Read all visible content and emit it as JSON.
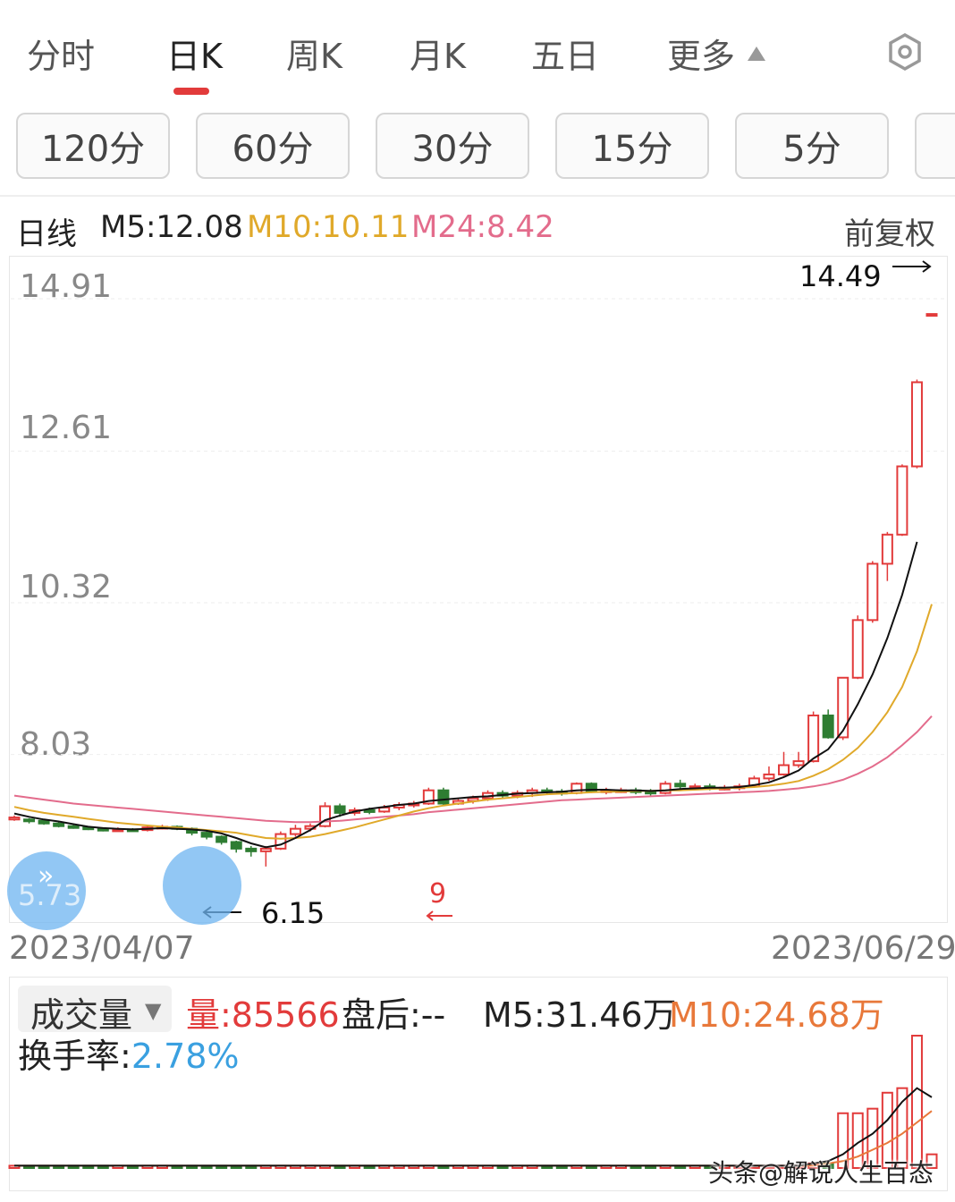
{
  "tabs": [
    {
      "label": "分时",
      "active": false
    },
    {
      "label": "日K",
      "active": true
    },
    {
      "label": "周K",
      "active": false
    },
    {
      "label": "月K",
      "active": false
    },
    {
      "label": "五日",
      "active": false
    },
    {
      "label": "更多",
      "active": false
    }
  ],
  "settings_icon": "gear-hexagon-icon",
  "periods": [
    "120分",
    "60分",
    "30分",
    "15分",
    "5分"
  ],
  "info": {
    "period_label": "日线",
    "m5": "M5:12.08",
    "m10": "M10:10.11",
    "m24": "M24:8.42",
    "adjust": "前复权"
  },
  "colors": {
    "up": "#e23b3b",
    "down": "#2e7d32",
    "ma5": "#111111",
    "ma10": "#e0a92a",
    "ma24": "#e36c8c",
    "accent": "#e23b3b",
    "turnover": "#3aa0e0"
  },
  "annotations": {
    "high_label": "14.49",
    "low_label": "6.15",
    "left_circle_label": "5.73",
    "mid_mark": "9"
  },
  "chart_data": {
    "type": "candlestick",
    "y_ticks": [
      "14.91",
      "12.61",
      "10.32",
      "8.03"
    ],
    "y_range": [
      5.73,
      14.91
    ],
    "x_start": "2023/04/07",
    "x_end": "2023/06/29",
    "candles": [
      [
        6.86,
        6.89,
        6.84,
        6.92
      ],
      [
        6.86,
        6.84,
        6.8,
        6.88
      ],
      [
        6.84,
        6.8,
        6.78,
        6.86
      ],
      [
        6.8,
        6.76,
        6.74,
        6.82
      ],
      [
        6.76,
        6.74,
        6.72,
        6.78
      ],
      [
        6.74,
        6.72,
        6.7,
        6.76
      ],
      [
        6.72,
        6.7,
        6.68,
        6.74
      ],
      [
        6.7,
        6.71,
        6.68,
        6.74
      ],
      [
        6.71,
        6.7,
        6.68,
        6.73
      ],
      [
        6.7,
        6.74,
        6.68,
        6.76
      ],
      [
        6.74,
        6.75,
        6.71,
        6.78
      ],
      [
        6.75,
        6.72,
        6.7,
        6.77
      ],
      [
        6.72,
        6.66,
        6.62,
        6.74
      ],
      [
        6.66,
        6.6,
        6.56,
        6.68
      ],
      [
        6.6,
        6.52,
        6.48,
        6.62
      ],
      [
        6.52,
        6.42,
        6.36,
        6.54
      ],
      [
        6.42,
        6.38,
        6.3,
        6.46
      ],
      [
        6.38,
        6.42,
        6.15,
        6.46
      ],
      [
        6.42,
        6.64,
        6.4,
        6.68
      ],
      [
        6.64,
        6.72,
        6.6,
        6.78
      ],
      [
        6.72,
        6.76,
        6.68,
        6.8
      ],
      [
        6.76,
        7.06,
        6.74,
        7.12
      ],
      [
        7.06,
        6.96,
        6.9,
        7.1
      ],
      [
        6.96,
        7.0,
        6.92,
        7.04
      ],
      [
        7.0,
        6.98,
        6.94,
        7.04
      ],
      [
        6.98,
        7.04,
        6.96,
        7.08
      ],
      [
        7.04,
        7.08,
        7.0,
        7.12
      ],
      [
        7.08,
        7.1,
        7.04,
        7.14
      ],
      [
        7.1,
        7.3,
        7.08,
        7.34
      ],
      [
        7.3,
        7.1,
        7.06,
        7.34
      ],
      [
        7.1,
        7.14,
        7.08,
        7.18
      ],
      [
        7.14,
        7.18,
        7.1,
        7.22
      ],
      [
        7.18,
        7.26,
        7.14,
        7.3
      ],
      [
        7.26,
        7.22,
        7.18,
        7.3
      ],
      [
        7.22,
        7.26,
        7.18,
        7.3
      ],
      [
        7.26,
        7.3,
        7.2,
        7.34
      ],
      [
        7.3,
        7.28,
        7.24,
        7.34
      ],
      [
        7.28,
        7.26,
        7.22,
        7.32
      ],
      [
        7.26,
        7.4,
        7.24,
        7.42
      ],
      [
        7.4,
        7.28,
        7.26,
        7.42
      ],
      [
        7.28,
        7.3,
        7.24,
        7.34
      ],
      [
        7.3,
        7.3,
        7.26,
        7.34
      ],
      [
        7.3,
        7.28,
        7.24,
        7.34
      ],
      [
        7.28,
        7.26,
        7.22,
        7.32
      ],
      [
        7.26,
        7.4,
        7.24,
        7.44
      ],
      [
        7.4,
        7.36,
        7.32,
        7.46
      ],
      [
        7.36,
        7.36,
        7.32,
        7.4
      ],
      [
        7.36,
        7.34,
        7.3,
        7.4
      ],
      [
        7.34,
        7.34,
        7.3,
        7.38
      ],
      [
        7.34,
        7.36,
        7.3,
        7.4
      ],
      [
        7.36,
        7.48,
        7.34,
        7.52
      ],
      [
        7.48,
        7.54,
        7.44,
        7.66
      ],
      [
        7.54,
        7.68,
        7.52,
        7.88
      ],
      [
        7.68,
        7.74,
        7.64,
        7.88
      ],
      [
        7.74,
        8.43,
        7.72,
        8.49
      ],
      [
        8.43,
        8.1,
        8.08,
        8.52
      ],
      [
        8.1,
        9.0,
        8.06,
        9.0
      ],
      [
        9.0,
        9.87,
        8.98,
        9.94
      ],
      [
        9.87,
        10.72,
        9.83,
        10.76
      ],
      [
        10.72,
        11.16,
        10.46,
        11.2
      ],
      [
        11.16,
        12.19,
        11.14,
        12.22
      ],
      [
        12.19,
        13.46,
        12.16,
        13.5
      ],
      [
        14.49,
        14.49,
        14.49,
        14.49
      ]
    ],
    "ma5": [
      6.95,
      6.9,
      6.86,
      6.83,
      6.79,
      6.75,
      6.73,
      6.72,
      6.71,
      6.72,
      6.73,
      6.72,
      6.71,
      6.69,
      6.65,
      6.58,
      6.5,
      6.44,
      6.48,
      6.58,
      6.7,
      6.85,
      6.92,
      6.98,
      7.02,
      7.05,
      7.08,
      7.1,
      7.14,
      7.16,
      7.18,
      7.2,
      7.21,
      7.23,
      7.25,
      7.26,
      7.27,
      7.28,
      7.3,
      7.31,
      7.31,
      7.3,
      7.3,
      7.29,
      7.3,
      7.32,
      7.33,
      7.34,
      7.34,
      7.35,
      7.38,
      7.42,
      7.5,
      7.6,
      7.78,
      7.92,
      8.2,
      8.6,
      9.05,
      9.6,
      10.25,
      11.05,
      12.08
    ],
    "ma10": [
      7.05,
      7.0,
      6.96,
      6.93,
      6.9,
      6.87,
      6.84,
      6.81,
      6.79,
      6.77,
      6.75,
      6.74,
      6.72,
      6.7,
      6.68,
      6.66,
      6.62,
      6.58,
      6.57,
      6.58,
      6.6,
      6.64,
      6.69,
      6.74,
      6.8,
      6.86,
      6.92,
      6.98,
      7.03,
      7.07,
      7.1,
      7.13,
      7.16,
      7.18,
      7.2,
      7.22,
      7.24,
      7.25,
      7.26,
      7.27,
      7.28,
      7.28,
      7.29,
      7.29,
      7.3,
      7.3,
      7.31,
      7.32,
      7.33,
      7.34,
      7.35,
      7.37,
      7.4,
      7.44,
      7.52,
      7.62,
      7.76,
      7.94,
      8.18,
      8.48,
      8.86,
      9.4,
      10.11
    ],
    "ma24": [
      7.22,
      7.19,
      7.16,
      7.13,
      7.1,
      7.08,
      7.06,
      7.04,
      7.02,
      7.0,
      6.98,
      6.96,
      6.94,
      6.92,
      6.9,
      6.88,
      6.86,
      6.84,
      6.83,
      6.82,
      6.82,
      6.83,
      6.84,
      6.86,
      6.88,
      6.9,
      6.92,
      6.94,
      6.97,
      6.99,
      7.01,
      7.03,
      7.05,
      7.07,
      7.09,
      7.11,
      7.13,
      7.15,
      7.16,
      7.17,
      7.18,
      7.19,
      7.2,
      7.21,
      7.22,
      7.23,
      7.24,
      7.25,
      7.26,
      7.27,
      7.28,
      7.29,
      7.31,
      7.33,
      7.36,
      7.4,
      7.46,
      7.55,
      7.66,
      7.8,
      7.98,
      8.18,
      8.42
    ],
    "volume_title": "成交量",
    "volume_label": "量:85566",
    "after_hours": "盘后:--",
    "vol_m5": "M5:31.46万",
    "vol_m10": "M10:24.68万",
    "turnover_label": "换手率:",
    "turnover_value": "2.78%",
    "volume": [
      1,
      1,
      1,
      1,
      1,
      1,
      1,
      1,
      1,
      1,
      1,
      1,
      1,
      1,
      1,
      1,
      1,
      1,
      1,
      1,
      1,
      1,
      1,
      1,
      1,
      1,
      1,
      1,
      1,
      1,
      1,
      1,
      1,
      1,
      1,
      1,
      1,
      1,
      1,
      1,
      1,
      1,
      1,
      1,
      1,
      1,
      1,
      1,
      1,
      1,
      1,
      1,
      1,
      1,
      2,
      2,
      24,
      24,
      26,
      33,
      35,
      58,
      6
    ],
    "volume_ma5": [
      1,
      1,
      1,
      1,
      1,
      1,
      1,
      1,
      1,
      1,
      1,
      1,
      1,
      1,
      1,
      1,
      1,
      1,
      1,
      1,
      1,
      1,
      1,
      1,
      1,
      1,
      1,
      1,
      1,
      1,
      1,
      1,
      1,
      1,
      1,
      1,
      1,
      1,
      1,
      1,
      1,
      1,
      1,
      1,
      1,
      1,
      1,
      1,
      1,
      1,
      1,
      1,
      1,
      1,
      2,
      3,
      6,
      11,
      15,
      21,
      29,
      35,
      31
    ],
    "volume_ma10": [
      1,
      1,
      1,
      1,
      1,
      1,
      1,
      1,
      1,
      1,
      1,
      1,
      1,
      1,
      1,
      1,
      1,
      1,
      1,
      1,
      1,
      1,
      1,
      1,
      1,
      1,
      1,
      1,
      1,
      1,
      1,
      1,
      1,
      1,
      1,
      1,
      1,
      1,
      1,
      1,
      1,
      1,
      1,
      1,
      1,
      1,
      1,
      1,
      1,
      1,
      1,
      1,
      1,
      1,
      1,
      2,
      3,
      5,
      8,
      11,
      15,
      20,
      25
    ]
  },
  "watermark": "头条@解说人生百态"
}
